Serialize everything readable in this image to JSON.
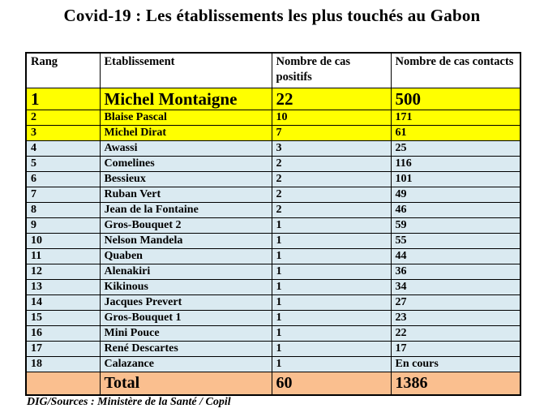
{
  "page": {
    "title": "Covid-19 : Les établissements les plus touchés au Gabon",
    "footer": "DIG/Sources : Ministère de la Santé / Copil"
  },
  "colors": {
    "row-yellow": "#FFFF00",
    "row-blue": "#DAEAF1",
    "row-orange": "#FABF8F",
    "border": "#000000",
    "text": "#000000",
    "background": "#FFFFFF"
  },
  "table": {
    "headers": [
      "Rang",
      "Etablissement",
      "Nombre de cas positifs",
      "Nombre de cas contacts"
    ],
    "rows": [
      {
        "rang": "1",
        "etablissement": "Michel Montaigne",
        "positifs": "22",
        "contacts": "500",
        "style": "yellow-large"
      },
      {
        "rang": "2",
        "etablissement": "Blaise Pascal",
        "positifs": "10",
        "contacts": "171",
        "style": "yellow"
      },
      {
        "rang": "3",
        "etablissement": "Michel Dirat",
        "positifs": "7",
        "contacts": "61",
        "style": "yellow"
      },
      {
        "rang": "4",
        "etablissement": "Awassi",
        "positifs": "3",
        "contacts": "25",
        "style": "blue"
      },
      {
        "rang": "5",
        "etablissement": "Comelines",
        "positifs": "2",
        "contacts": "116",
        "style": "blue"
      },
      {
        "rang": "6",
        "etablissement": "Bessieux",
        "positifs": "2",
        "contacts": "101",
        "style": "blue"
      },
      {
        "rang": "7",
        "etablissement": "Ruban Vert",
        "positifs": "2",
        "contacts": "49",
        "style": "blue"
      },
      {
        "rang": "8",
        "etablissement": "Jean de la Fontaine",
        "positifs": "2",
        "contacts": "46",
        "style": "blue"
      },
      {
        "rang": "9",
        "etablissement": "Gros-Bouquet 2",
        "positifs": "1",
        "contacts": "59",
        "style": "blue"
      },
      {
        "rang": "10",
        "etablissement": "Nelson Mandela",
        "positifs": "1",
        "contacts": "55",
        "style": "blue"
      },
      {
        "rang": "11",
        "etablissement": "Quaben",
        "positifs": "1",
        "contacts": "44",
        "style": "blue"
      },
      {
        "rang": "12",
        "etablissement": "Alenakiri",
        "positifs": "1",
        "contacts": "36",
        "style": "blue"
      },
      {
        "rang": "13",
        "etablissement": "Kikinous",
        "positifs": "1",
        "contacts": "34",
        "style": "blue"
      },
      {
        "rang": "14",
        "etablissement": "Jacques Prevert",
        "positifs": "1",
        "contacts": "27",
        "style": "blue"
      },
      {
        "rang": "15",
        "etablissement": "Gros-Bouquet 1",
        "positifs": "1",
        "contacts": "23",
        "style": "blue"
      },
      {
        "rang": "16",
        "etablissement": "Mini Pouce",
        "positifs": "1",
        "contacts": "22",
        "style": "blue"
      },
      {
        "rang": "17",
        "etablissement": "René Descartes",
        "positifs": "1",
        "contacts": "17",
        "style": "blue"
      },
      {
        "rang": "18",
        "etablissement": "Calazance",
        "positifs": "1",
        "contacts": "En cours",
        "style": "blue"
      }
    ],
    "total": {
      "rang": "",
      "label": "Total",
      "positifs": "60",
      "contacts": "1386"
    }
  }
}
